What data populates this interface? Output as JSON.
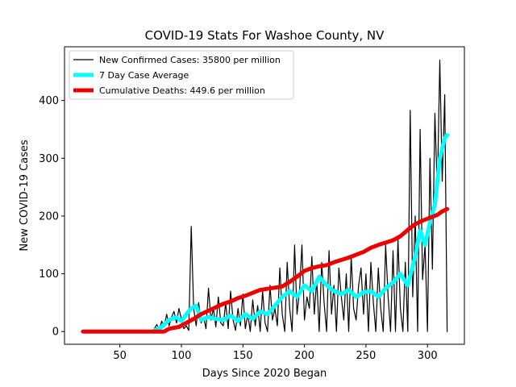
{
  "chart_data": {
    "type": "line",
    "title": "COVID-19 Stats For Washoe County, NV",
    "xlabel": "Days Since 2020 Began",
    "ylabel": "New COVID-19 Cases",
    "xlim": [
      5,
      330
    ],
    "ylim": [
      -22,
      493
    ],
    "xticks": [
      50,
      100,
      150,
      200,
      250,
      300
    ],
    "yticks": [
      0,
      100,
      200,
      300,
      400
    ],
    "grid": false,
    "legend_position": "top-left",
    "series": [
      {
        "name": "New Confirmed Cases: 35800 per million",
        "color": "#000000",
        "x": [
          20,
          75,
          78,
          80,
          82,
          84,
          86,
          88,
          90,
          92,
          94,
          96,
          98,
          100,
          102,
          104,
          106,
          108,
          110,
          112,
          114,
          116,
          118,
          120,
          122,
          124,
          126,
          128,
          130,
          132,
          134,
          136,
          138,
          140,
          142,
          144,
          146,
          148,
          150,
          152,
          154,
          156,
          158,
          160,
          162,
          164,
          166,
          168,
          170,
          172,
          174,
          176,
          178,
          180,
          182,
          184,
          186,
          188,
          190,
          192,
          194,
          196,
          198,
          200,
          202,
          204,
          206,
          208,
          210,
          212,
          214,
          216,
          218,
          220,
          222,
          224,
          226,
          228,
          230,
          232,
          234,
          236,
          238,
          240,
          242,
          244,
          246,
          248,
          250,
          252,
          254,
          256,
          258,
          260,
          262,
          264,
          266,
          268,
          270,
          272,
          274,
          276,
          278,
          280,
          282,
          284,
          286,
          288,
          290,
          292,
          294,
          296,
          298,
          300,
          302,
          304,
          306,
          308,
          310,
          312,
          314,
          316
        ],
        "values": [
          0,
          0,
          5,
          12,
          3,
          18,
          8,
          30,
          10,
          25,
          35,
          15,
          40,
          22,
          5,
          10,
          2,
          182,
          40,
          10,
          50,
          15,
          25,
          5,
          75,
          20,
          40,
          8,
          60,
          15,
          10,
          50,
          5,
          70,
          20,
          2,
          40,
          10,
          65,
          5,
          30,
          0,
          55,
          10,
          45,
          0,
          70,
          15,
          0,
          80,
          20,
          40,
          10,
          110,
          30,
          0,
          120,
          40,
          0,
          150,
          30,
          70,
          150,
          20,
          60,
          40,
          130,
          30,
          90,
          0,
          120,
          50,
          0,
          140,
          30,
          80,
          0,
          110,
          60,
          20,
          100,
          0,
          130,
          40,
          20,
          80,
          110,
          30,
          100,
          0,
          120,
          50,
          0,
          110,
          40,
          0,
          150,
          60,
          0,
          140,
          0,
          160,
          40,
          0,
          120,
          0,
          383,
          60,
          200,
          0,
          350,
          90,
          150,
          0,
          300,
          108,
          378,
          240,
          470,
          260,
          410,
          0
        ]
      },
      {
        "name": "7 Day Case Average",
        "color": "#00ffff",
        "x": [
          78,
          84,
          90,
          96,
          100,
          104,
          108,
          112,
          116,
          122,
          128,
          134,
          140,
          146,
          152,
          158,
          164,
          170,
          176,
          182,
          188,
          194,
          200,
          206,
          212,
          218,
          224,
          230,
          236,
          242,
          248,
          254,
          260,
          266,
          272,
          278,
          284,
          290,
          294,
          298,
          302,
          306,
          310,
          314,
          316
        ],
        "values": [
          2,
          8,
          20,
          25,
          18,
          30,
          40,
          45,
          20,
          25,
          22,
          20,
          28,
          18,
          30,
          22,
          35,
          30,
          45,
          60,
          70,
          60,
          80,
          70,
          95,
          80,
          70,
          65,
          72,
          60,
          68,
          70,
          60,
          75,
          85,
          100,
          80,
          130,
          175,
          150,
          190,
          220,
          300,
          335,
          340
        ]
      },
      {
        "name": "Cumulative Deaths: 449.6 per million",
        "color": "#ee0000",
        "x": [
          20,
          86,
          90,
          98,
          104,
          110,
          116,
          122,
          128,
          134,
          140,
          146,
          152,
          158,
          164,
          170,
          176,
          182,
          188,
          194,
          200,
          206,
          212,
          218,
          224,
          230,
          236,
          242,
          248,
          254,
          260,
          266,
          272,
          278,
          284,
          290,
          296,
          302,
          308,
          312,
          316
        ],
        "values": [
          0,
          0,
          5,
          8,
          15,
          22,
          30,
          36,
          42,
          48,
          52,
          58,
          62,
          67,
          72,
          74,
          76,
          78,
          86,
          95,
          105,
          110,
          113,
          115,
          120,
          124,
          128,
          133,
          138,
          145,
          150,
          154,
          158,
          165,
          176,
          186,
          192,
          197,
          202,
          208,
          212
        ]
      }
    ]
  }
}
